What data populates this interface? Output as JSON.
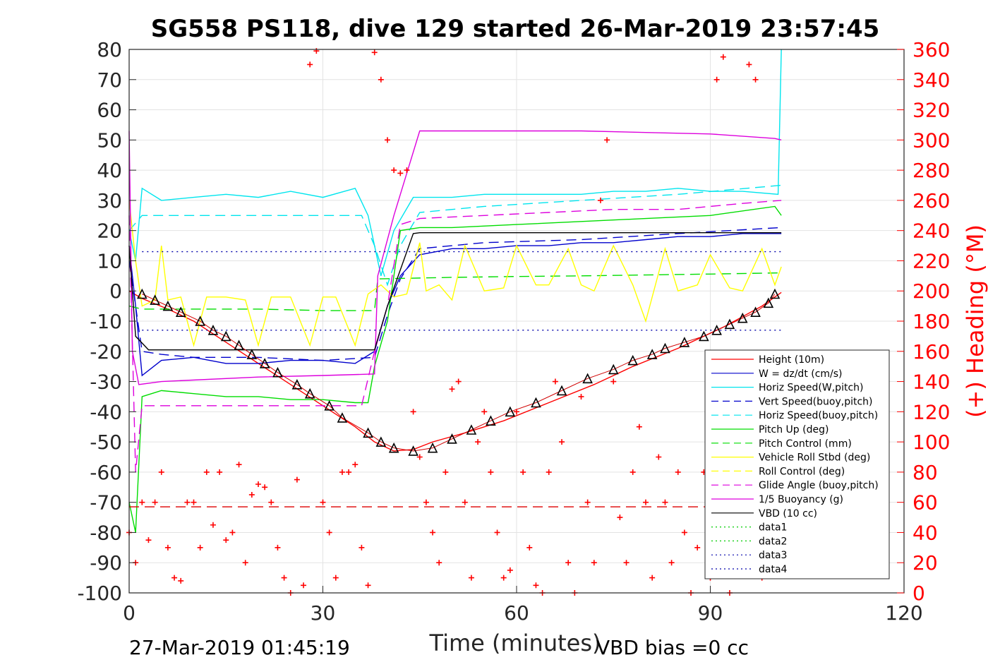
{
  "chart_data": {
    "type": "line",
    "title": "SG558 PS118, dive 129 started 26-Mar-2019 23:57:45",
    "xlabel": "Time (minutes)",
    "ylabel_right": "(+) Heading (°M)",
    "xlim": [
      0,
      120
    ],
    "ylim_left": [
      -100,
      80
    ],
    "ylim_right": [
      0,
      360
    ],
    "x_ticks": [
      0,
      30,
      60,
      90,
      120
    ],
    "y_ticks_left": [
      80,
      70,
      60,
      50,
      40,
      30,
      20,
      10,
      0,
      -10,
      -20,
      -30,
      -40,
      -50,
      -60,
      -70,
      -80,
      -90,
      -100
    ],
    "y_ticks_right": [
      360,
      340,
      320,
      300,
      280,
      260,
      240,
      220,
      200,
      180,
      160,
      140,
      120,
      100,
      80,
      60,
      40,
      20,
      0
    ],
    "grid": true,
    "legend_position": "bottom-right",
    "footer_left": "27-Mar-2019 01:45:19",
    "footer_right": "VBD bias =0 cc",
    "series": [
      {
        "name": "Height (10m)",
        "color": "#ff0000",
        "style": "solid",
        "marker": "none",
        "x": [
          0,
          2,
          6,
          10,
          15,
          20,
          25,
          30,
          35,
          38,
          41,
          44,
          47,
          52,
          58,
          65,
          72,
          78,
          85,
          92,
          98,
          101
        ],
        "y": [
          0,
          -2.5,
          -6,
          -10,
          -17,
          -24,
          -31,
          -38,
          -45,
          -50,
          -53,
          -52.5,
          -50,
          -47,
          -43,
          -37,
          -31,
          -25,
          -19,
          -12,
          -5,
          -0.5
        ]
      },
      {
        "name": "W = dz/dt (cm/s)",
        "color": "#0000cc",
        "style": "solid",
        "marker": "none",
        "x": [
          0,
          1,
          2,
          5,
          10,
          15,
          20,
          25,
          30,
          35,
          38,
          40,
          42,
          45,
          50,
          55,
          60,
          65,
          70,
          75,
          80,
          85,
          90,
          95,
          101
        ],
        "y": [
          15,
          -5,
          -28,
          -23,
          -22,
          -24,
          -24,
          -23,
          -23,
          -24,
          -20,
          -5,
          5,
          12,
          14,
          14,
          15,
          15,
          16,
          16,
          17,
          18,
          18,
          19,
          19
        ]
      },
      {
        "name": "Horiz Speed(W,pitch)",
        "color": "#00e5ee",
        "style": "solid",
        "marker": "none",
        "x": [
          0,
          1,
          2,
          5,
          10,
          15,
          20,
          25,
          30,
          35,
          37,
          39,
          41,
          44,
          50,
          55,
          60,
          65,
          70,
          75,
          80,
          85,
          90,
          95,
          100.5,
          101
        ],
        "y": [
          20,
          10,
          34,
          30,
          31,
          32,
          31,
          33,
          31,
          34,
          25,
          5,
          20,
          31,
          31,
          32,
          32,
          32,
          32,
          33,
          33,
          34,
          33,
          33,
          32,
          80
        ]
      },
      {
        "name": "Vert Speed(buoy,pitch)",
        "color": "#0000cc",
        "style": "dashed",
        "marker": "none",
        "x": [
          0,
          2,
          5,
          10,
          20,
          30,
          38,
          40,
          42,
          45,
          55,
          70,
          85,
          101
        ],
        "y": [
          10,
          -20,
          -21,
          -22,
          -22,
          -23,
          -22,
          -8,
          4,
          14,
          16,
          17,
          19,
          21
        ]
      },
      {
        "name": "Horiz Speed(buoy,pitch)",
        "color": "#00e5ee",
        "style": "dashed",
        "marker": "none",
        "x": [
          0,
          2,
          5,
          10,
          20,
          30,
          36,
          38,
          40,
          42,
          45,
          55,
          70,
          85,
          101
        ],
        "y": [
          20,
          25,
          25,
          25,
          25,
          25,
          25,
          15,
          2,
          15,
          26,
          28,
          30,
          32,
          35
        ]
      },
      {
        "name": "Pitch Up (deg)",
        "color": "#00dd00",
        "style": "solid",
        "marker": "none",
        "x": [
          0,
          1,
          2,
          5,
          10,
          15,
          20,
          25,
          30,
          35,
          37,
          38,
          40,
          42,
          45,
          50,
          60,
          70,
          80,
          90,
          100,
          101
        ],
        "y": [
          -70,
          -80,
          -35,
          -33,
          -34,
          -35,
          -35,
          -36,
          -36,
          -37,
          -37,
          -25,
          -10,
          20,
          21,
          21,
          22,
          23,
          24,
          25,
          28,
          25
        ]
      },
      {
        "name": "Pitch Control (mm)",
        "color": "#00dd00",
        "style": "dashed",
        "marker": "none",
        "x": [
          0,
          2,
          10,
          20,
          30,
          38,
          38.5,
          50,
          60,
          70,
          80,
          90,
          101
        ],
        "y": [
          -5,
          -6,
          -6,
          -6,
          -6.5,
          -6.5,
          4,
          4.5,
          4.8,
          5,
          5.3,
          5.6,
          6
        ]
      },
      {
        "name": "Vehicle Roll Stbd (deg)",
        "color": "#ffff00",
        "style": "solid",
        "marker": "none",
        "x": [
          0,
          1,
          2,
          4,
          5,
          6,
          8,
          10,
          12,
          15,
          18,
          20,
          22,
          25,
          28,
          30,
          32,
          35,
          37,
          39,
          41,
          43,
          45,
          46,
          48,
          50,
          52,
          55,
          58,
          60,
          63,
          65,
          68,
          70,
          72,
          75,
          78,
          80,
          83,
          85,
          88,
          90,
          93,
          95,
          98,
          100,
          101
        ],
        "y": [
          30,
          10,
          -5,
          -3,
          15,
          -3,
          -2,
          -18,
          -2,
          -2,
          -3,
          -18,
          -2,
          -2,
          -18,
          -2,
          -2,
          -18,
          -1,
          2,
          -2,
          -1,
          16,
          0,
          2,
          -3,
          15,
          0,
          1,
          15,
          2,
          2,
          14,
          2,
          0,
          15,
          2,
          -10,
          14,
          0,
          2,
          12,
          1,
          0,
          14,
          2,
          8
        ]
      },
      {
        "name": "Roll Control (deg)",
        "color": "#ffff00",
        "style": "dashed",
        "marker": "none",
        "x": [],
        "y": []
      },
      {
        "name": "Glide Angle (buoy,pitch)",
        "color": "#dd00dd",
        "style": "dashed",
        "marker": "none",
        "x": [
          0,
          1,
          2,
          5,
          10,
          20,
          30,
          36,
          38,
          40,
          42,
          45,
          55,
          65,
          75,
          85,
          95,
          101
        ],
        "y": [
          25,
          -60,
          -38,
          -38,
          -38,
          -38,
          -38,
          -38,
          -20,
          -5,
          22,
          24,
          25,
          26,
          27,
          27,
          29,
          30
        ]
      },
      {
        "name": "1/5 Buoyancy (g)",
        "color": "#dd00dd",
        "style": "solid",
        "marker": "none",
        "x": [
          0,
          0.5,
          1.5,
          5,
          20,
          30,
          38,
          38.5,
          41,
          45,
          60,
          70,
          80,
          90,
          100,
          101
        ],
        "y": [
          53,
          -20,
          -31,
          -30,
          -28.5,
          -28,
          -27.5,
          5,
          25,
          53,
          53,
          53,
          52.5,
          52,
          50.5,
          50
        ]
      },
      {
        "name": "VBD (10 cc)",
        "color": "#000000",
        "style": "solid",
        "marker": "none",
        "x": [
          0,
          1,
          3,
          38,
          40,
          44,
          45,
          101
        ],
        "y": [
          15,
          -15,
          -19.5,
          -19.5,
          -5,
          19,
          19.3,
          19.3
        ]
      },
      {
        "name": "data1",
        "color": "#00cc00",
        "style": "dotted",
        "marker": "none",
        "x": [],
        "y": []
      },
      {
        "name": "data2",
        "color": "#00cc00",
        "style": "dotted",
        "marker": "none",
        "x": [],
        "y": []
      },
      {
        "name": "data3",
        "color": "#0000aa",
        "style": "dotted",
        "marker": "none",
        "x": [
          2,
          101
        ],
        "y": [
          13,
          13
        ]
      },
      {
        "name": "data4",
        "color": "#0000aa",
        "style": "dotted",
        "marker": "none",
        "x": [
          2,
          101
        ],
        "y": [
          -13,
          -13
        ]
      }
    ],
    "unlabeled_series": [
      {
        "description_color": "#dd0000",
        "style": "dashed",
        "x": [
          0,
          101
        ],
        "y": [
          -71.5,
          -71.5
        ]
      },
      {
        "description_color": "#000000",
        "marker": "triangle",
        "axis": "left",
        "x": [
          2,
          4,
          6,
          8,
          11,
          13,
          15,
          17,
          19,
          21,
          23,
          26,
          28,
          31,
          33,
          37,
          39,
          41,
          44,
          47,
          50,
          53,
          56,
          59,
          63,
          67,
          71,
          75,
          78,
          81,
          83,
          86,
          89,
          91,
          93,
          95,
          97,
          99,
          100
        ],
        "y": [
          -1,
          -3,
          -5,
          -7,
          -10,
          -13,
          -15,
          -18,
          -21,
          -24,
          -27,
          -31,
          -34,
          -38,
          -42,
          -47,
          -50,
          -52,
          -53,
          -52,
          -49,
          -46,
          -43,
          -40,
          -37,
          -33,
          -29,
          -26,
          -23,
          -21,
          -19,
          -17,
          -15,
          -13,
          -11,
          -9,
          -7,
          -4,
          -1
        ]
      },
      {
        "description_color": "#ff0000",
        "marker": "plus",
        "axis": "right",
        "x": [
          0,
          1,
          2,
          3,
          4,
          5,
          6,
          7,
          8,
          9,
          10,
          11,
          12,
          13,
          14,
          15,
          16,
          17,
          18,
          19,
          20,
          21,
          22,
          23,
          24,
          25,
          26,
          27,
          28,
          29,
          30,
          31,
          32,
          33,
          34,
          35,
          36,
          37,
          38,
          39,
          40,
          41,
          42,
          43,
          44,
          45,
          46,
          47,
          48,
          49,
          50,
          51,
          52,
          53,
          54,
          55,
          56,
          57,
          58,
          59,
          60,
          61,
          62,
          63,
          64,
          65,
          66,
          67,
          68,
          69,
          70,
          71,
          72,
          73,
          74,
          75,
          76,
          77,
          78,
          79,
          80,
          81,
          82,
          83,
          84,
          85,
          86,
          87,
          88,
          89,
          90,
          91,
          92,
          93,
          94,
          95,
          96,
          97,
          98,
          99,
          100
        ],
        "y": [
          40,
          20,
          60,
          35,
          60,
          80,
          30,
          10,
          8,
          60,
          60,
          30,
          80,
          45,
          80,
          35,
          40,
          85,
          20,
          65,
          72,
          70,
          60,
          30,
          10,
          0,
          75,
          5,
          350,
          359,
          60,
          40,
          10,
          80,
          80,
          85,
          30,
          5,
          358,
          340,
          300,
          280,
          278,
          280,
          120,
          90,
          60,
          40,
          20,
          80,
          135,
          140,
          60,
          10,
          100,
          120,
          80,
          40,
          10,
          15,
          120,
          80,
          30,
          5,
          0,
          80,
          140,
          100,
          20,
          0,
          130,
          60,
          20,
          260,
          300,
          140,
          50,
          20,
          80,
          110,
          60,
          10,
          90,
          60,
          20,
          80,
          40,
          0,
          30,
          80,
          10,
          340,
          355,
          0,
          30,
          30,
          350,
          340,
          10,
          60,
          40
        ]
      }
    ]
  }
}
